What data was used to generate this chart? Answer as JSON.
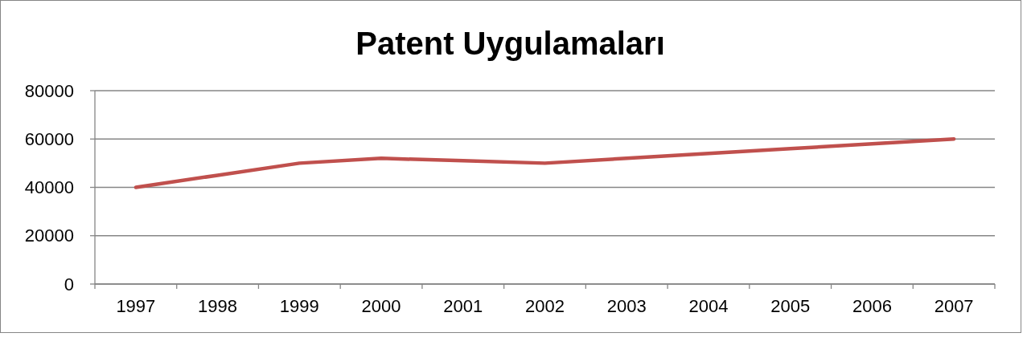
{
  "chart_data": {
    "type": "line",
    "title": "Patent Uygulamaları",
    "categories": [
      "1997",
      "1998",
      "1999",
      "2000",
      "2001",
      "2002",
      "2003",
      "2004",
      "2005",
      "2006",
      "2007"
    ],
    "series": [
      {
        "color": "#c0504d",
        "values": [
          40000,
          45000,
          50000,
          52000,
          51000,
          50000,
          52000,
          54000,
          56000,
          58000,
          60000
        ]
      }
    ],
    "ylim": [
      0,
      80000
    ],
    "yticks": [
      0,
      20000,
      40000,
      60000,
      80000
    ],
    "grid": "y",
    "marker": "none",
    "line_style": "solid"
  }
}
